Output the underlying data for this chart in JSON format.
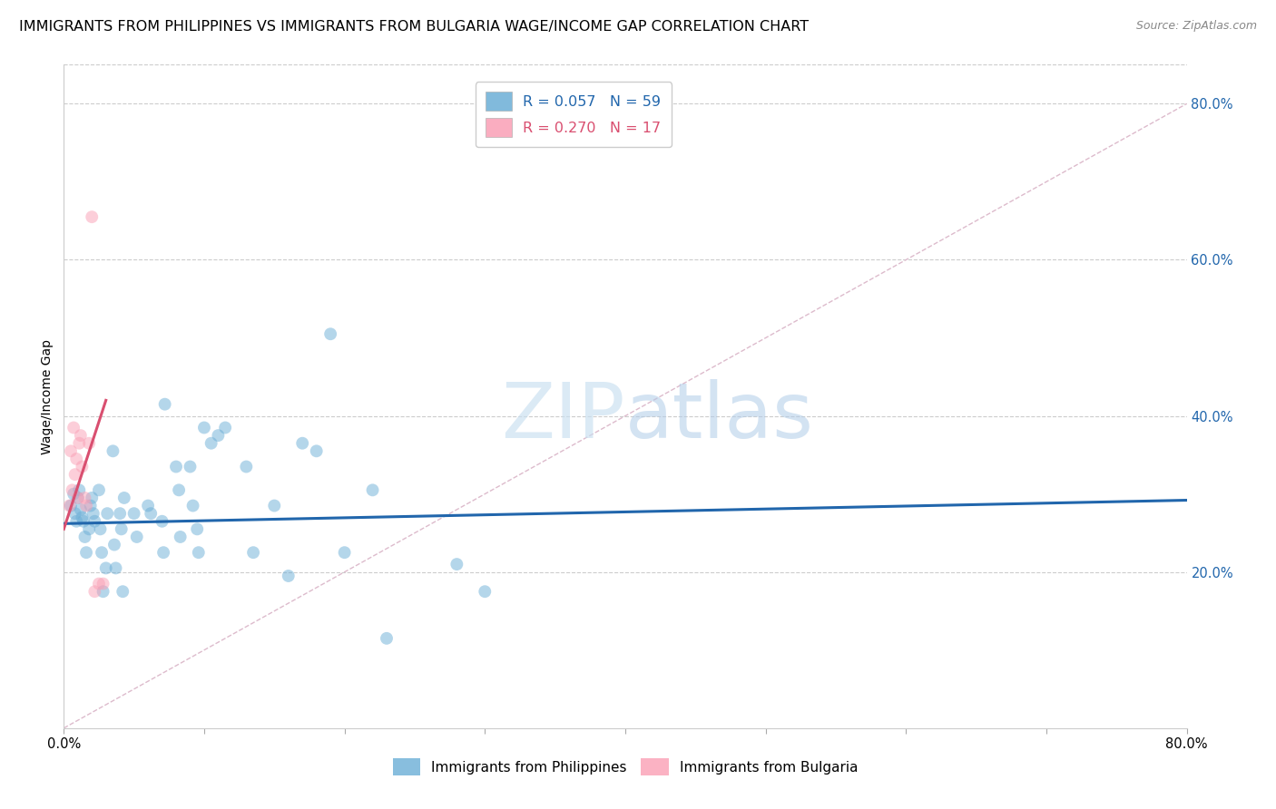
{
  "title": "IMMIGRANTS FROM PHILIPPINES VS IMMIGRANTS FROM BULGARIA WAGE/INCOME GAP CORRELATION CHART",
  "source": "Source: ZipAtlas.com",
  "ylabel": "Wage/Income Gap",
  "right_ytick_labels": [
    "80.0%",
    "60.0%",
    "40.0%",
    "20.0%"
  ],
  "right_ytick_values": [
    0.8,
    0.6,
    0.4,
    0.2
  ],
  "xlim": [
    0.0,
    0.8
  ],
  "ylim": [
    0.0,
    0.85
  ],
  "blue_color": "#6baed6",
  "pink_color": "#fa9fb5",
  "blue_line_color": "#2166ac",
  "pink_line_color": "#d94f70",
  "grid_color": "#cccccc",
  "legend_blue_r": "R = 0.057",
  "legend_blue_n": "N = 59",
  "legend_pink_r": "R = 0.270",
  "legend_pink_n": "N = 17",
  "blue_scatter_x": [
    0.005,
    0.007,
    0.008,
    0.009,
    0.01,
    0.011,
    0.012,
    0.013,
    0.014,
    0.015,
    0.016,
    0.018,
    0.019,
    0.02,
    0.021,
    0.022,
    0.025,
    0.026,
    0.027,
    0.028,
    0.03,
    0.031,
    0.035,
    0.036,
    0.037,
    0.04,
    0.041,
    0.042,
    0.043,
    0.05,
    0.052,
    0.06,
    0.062,
    0.07,
    0.071,
    0.072,
    0.08,
    0.082,
    0.083,
    0.09,
    0.092,
    0.095,
    0.096,
    0.1,
    0.105,
    0.11,
    0.115,
    0.13,
    0.135,
    0.15,
    0.16,
    0.17,
    0.18,
    0.19,
    0.2,
    0.22,
    0.23,
    0.28,
    0.3
  ],
  "blue_scatter_y": [
    0.285,
    0.3,
    0.275,
    0.265,
    0.295,
    0.305,
    0.28,
    0.27,
    0.265,
    0.245,
    0.225,
    0.255,
    0.285,
    0.295,
    0.275,
    0.265,
    0.305,
    0.255,
    0.225,
    0.175,
    0.205,
    0.275,
    0.355,
    0.235,
    0.205,
    0.275,
    0.255,
    0.175,
    0.295,
    0.275,
    0.245,
    0.285,
    0.275,
    0.265,
    0.225,
    0.415,
    0.335,
    0.305,
    0.245,
    0.335,
    0.285,
    0.255,
    0.225,
    0.385,
    0.365,
    0.375,
    0.385,
    0.335,
    0.225,
    0.285,
    0.195,
    0.365,
    0.355,
    0.505,
    0.225,
    0.305,
    0.115,
    0.21,
    0.175
  ],
  "pink_scatter_x": [
    0.004,
    0.005,
    0.006,
    0.007,
    0.008,
    0.009,
    0.01,
    0.011,
    0.012,
    0.013,
    0.015,
    0.016,
    0.018,
    0.02,
    0.022,
    0.025,
    0.028
  ],
  "pink_scatter_y": [
    0.285,
    0.355,
    0.305,
    0.385,
    0.325,
    0.345,
    0.295,
    0.365,
    0.375,
    0.335,
    0.295,
    0.285,
    0.365,
    0.655,
    0.175,
    0.185,
    0.185
  ],
  "blue_trend_x0": 0.0,
  "blue_trend_x1": 0.8,
  "blue_trend_y0": 0.262,
  "blue_trend_y1": 0.292,
  "pink_trend_x0": 0.0,
  "pink_trend_x1": 0.03,
  "pink_trend_y0": 0.255,
  "pink_trend_y1": 0.42,
  "ref_line_x0": 0.0,
  "ref_line_x1": 0.8,
  "ref_line_y0": 0.0,
  "ref_line_y1": 0.8,
  "watermark_zip": "ZIP",
  "watermark_atlas": "atlas",
  "title_fontsize": 11.5,
  "label_fontsize": 10,
  "tick_fontsize": 10.5,
  "scatter_size": 100,
  "scatter_alpha": 0.5
}
